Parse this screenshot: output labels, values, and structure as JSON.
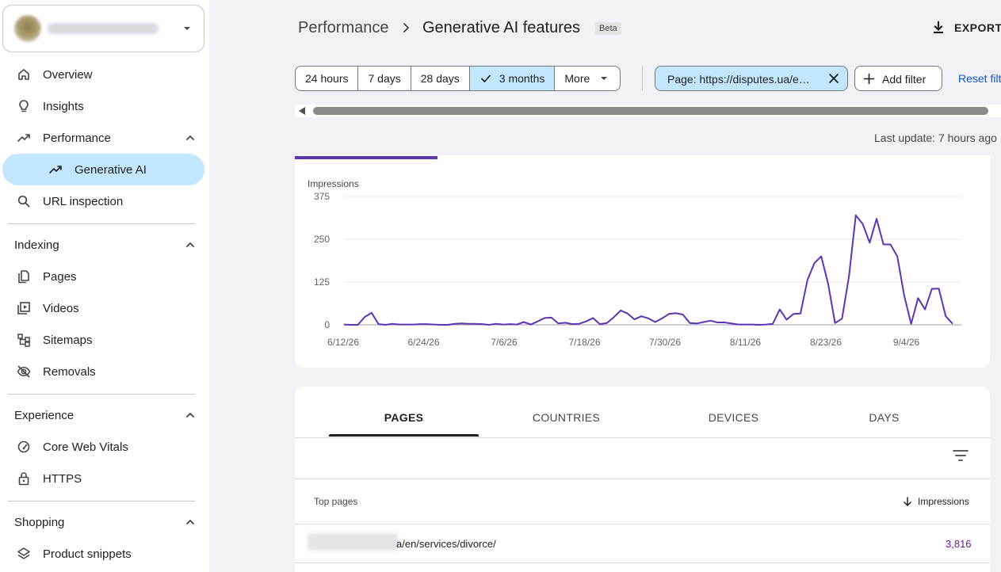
{
  "sidebar": {
    "nav_top": [
      {
        "label": "Overview",
        "icon": "home-icon"
      },
      {
        "label": "Insights",
        "icon": "lightbulb-icon"
      },
      {
        "label": "Performance",
        "icon": "trending-up-icon"
      },
      {
        "label": "Generative AI",
        "icon": "trending-up-icon"
      },
      {
        "label": "URL inspection",
        "icon": "search-icon"
      }
    ],
    "indexing": {
      "title": "Indexing",
      "items": [
        {
          "label": "Pages",
          "icon": "pages-icon"
        },
        {
          "label": "Videos",
          "icon": "video-icon"
        },
        {
          "label": "Sitemaps",
          "icon": "sitemap-icon"
        },
        {
          "label": "Removals",
          "icon": "eye-off-icon"
        }
      ]
    },
    "experience": {
      "title": "Experience",
      "items": [
        {
          "label": "Core Web Vitals",
          "icon": "gauge-icon"
        },
        {
          "label": "HTTPS",
          "icon": "lock-icon"
        }
      ]
    },
    "shopping": {
      "title": "Shopping",
      "items": [
        {
          "label": "Product snippets",
          "icon": "layers-icon"
        }
      ]
    }
  },
  "header": {
    "crumb_parent": "Performance",
    "crumb_current": "Generative AI features",
    "beta": "Beta",
    "export": "EXPORT"
  },
  "filters": {
    "ranges": [
      "24 hours",
      "7 days",
      "28 days",
      "3 months",
      "More"
    ],
    "selected": "3 months",
    "page_filter": "Page: https://disputes.ua/e…",
    "add_filter": "Add filter",
    "reset": "Reset filters"
  },
  "last_update": "Last update: 7 hours ago",
  "chart_data": {
    "type": "line",
    "ylabel": "Impressions",
    "ylim": [
      0,
      375
    ],
    "yticks": [
      0,
      125,
      250,
      375
    ],
    "xtick_labels": [
      "6/12/26",
      "6/24/26",
      "7/6/26",
      "7/18/26",
      "7/30/26",
      "8/11/26",
      "8/23/26",
      "9/4/26"
    ],
    "grid": true,
    "color": "#5e35b1",
    "series": [
      {
        "values": [
          1,
          0,
          0,
          23,
          35,
          2,
          0,
          3,
          1,
          1,
          1,
          2,
          2,
          1,
          0,
          0,
          3,
          4,
          3,
          3,
          2,
          0,
          3,
          1,
          2,
          1,
          8,
          1,
          10,
          20,
          21,
          4,
          6,
          2,
          3,
          10,
          20,
          2,
          5,
          22,
          42,
          33,
          16,
          25,
          19,
          8,
          19,
          32,
          34,
          30,
          5,
          4,
          8,
          12,
          7,
          7,
          4,
          1,
          1,
          1,
          0,
          1,
          3,
          45,
          15,
          32,
          33,
          130,
          180,
          200,
          120,
          5,
          18,
          140,
          320,
          295,
          240,
          310,
          235,
          235,
          200,
          85,
          3,
          78,
          45,
          105,
          106,
          25,
          3
        ]
      }
    ]
  },
  "table": {
    "tabs": [
      "PAGES",
      "COUNTRIES",
      "DEVICES",
      "DAYS"
    ],
    "col_pages": "Top pages",
    "col_impressions": "Impressions",
    "rows": [
      {
        "url": "a/en/services/divorce/",
        "impressions": "3,816"
      }
    ]
  }
}
